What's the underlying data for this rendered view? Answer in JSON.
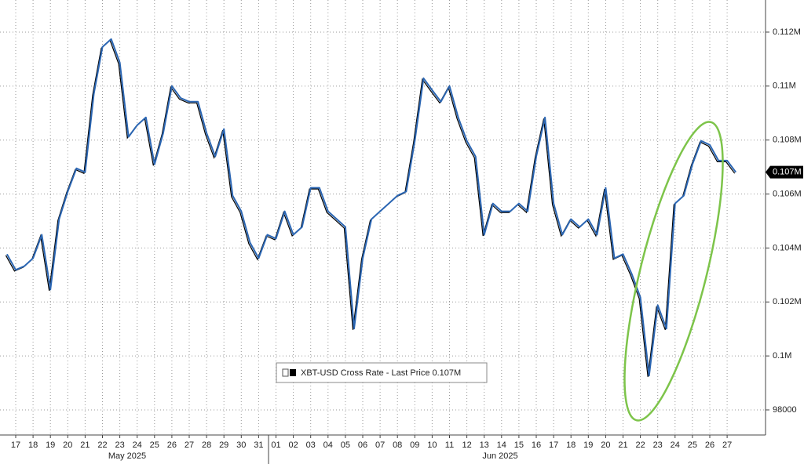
{
  "chart_data": {
    "type": "line",
    "categories": [
      null,
      "17",
      null,
      "18",
      null,
      "19",
      null,
      "20",
      null,
      "21",
      null,
      "22",
      null,
      "23",
      null,
      "24",
      null,
      "25",
      null,
      "26",
      null,
      "27",
      null,
      "28",
      null,
      "29",
      null,
      "30",
      null,
      "31",
      null,
      "01",
      null,
      "02",
      null,
      "03",
      null,
      "04",
      null,
      "05",
      null,
      "06",
      null,
      "07",
      null,
      "08",
      null,
      "09",
      null,
      "10",
      null,
      "11",
      null,
      "12",
      null,
      "13",
      null,
      "14",
      null,
      "15",
      null,
      "16",
      null,
      "17",
      null,
      "18",
      null,
      "19",
      null,
      "20",
      null,
      "21",
      null,
      "22",
      null,
      "23",
      null,
      "24",
      null,
      "25",
      null,
      "26",
      null,
      "27",
      null
    ],
    "month_labels": [
      "May 2025",
      "Jun 2025"
    ],
    "series": [
      {
        "name": "XBT-USD Cross Rate - Last Price 0.107M",
        "color": "#2b66b3",
        "values": [
          103770,
          103190,
          103330,
          103620,
          104490,
          102460,
          105070,
          106090,
          106950,
          106810,
          109710,
          111450,
          111740,
          110870,
          108120,
          108550,
          108840,
          107100,
          108260,
          110000,
          109560,
          109420,
          109420,
          108260,
          107390,
          108410,
          105940,
          105360,
          104200,
          103620,
          104490,
          104350,
          105360,
          104490,
          104780,
          106230,
          106230,
          105360,
          105070,
          104780,
          101010,
          103620,
          105070,
          105360,
          105650,
          105940,
          106090,
          107970,
          110290,
          109850,
          109420,
          110000,
          108840,
          107970,
          107390,
          104490,
          105650,
          105360,
          105360,
          105650,
          105360,
          107390,
          108840,
          105650,
          104490,
          105070,
          104780,
          105070,
          104490,
          106230,
          103620,
          103770,
          103040,
          102170,
          99270,
          101880,
          101010,
          105650,
          105940,
          107100,
          107970,
          107820,
          107240,
          107240,
          106810
        ],
        "last_value_label": "0.107M"
      }
    ],
    "ylim": [
      97070,
      113190
    ],
    "yticks": [
      98000,
      {
        "value": 100000,
        "label": "0.1M"
      },
      {
        "value": 102000,
        "label": "0.102M"
      },
      {
        "value": 104000,
        "label": "0.104M"
      },
      {
        "value": 106000,
        "label": "0.106M"
      },
      {
        "value": 108000,
        "label": "0.108M"
      },
      {
        "value": 110000,
        "label": "0.11M"
      },
      {
        "value": 112000,
        "label": "0.112M"
      }
    ],
    "grid": true,
    "legend": "bottom"
  }
}
